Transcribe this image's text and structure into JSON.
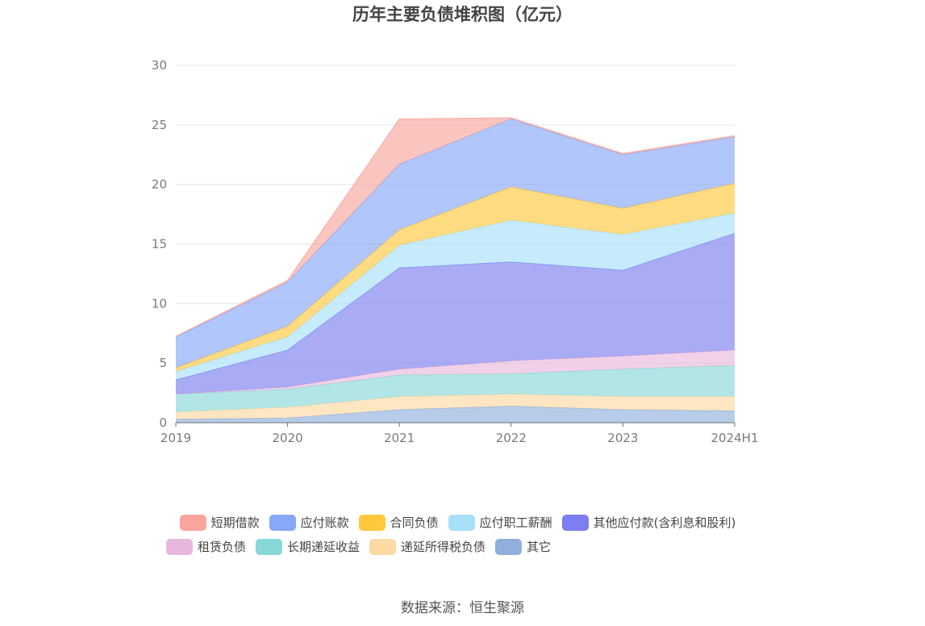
{
  "chart_data": {
    "type": "area",
    "stacked": true,
    "title": "历年主要负债堆积图（亿元）",
    "categories": [
      "2019",
      "2020",
      "2021",
      "2022",
      "2023",
      "2024H1"
    ],
    "ylim": [
      0,
      30
    ],
    "yticks": [
      0,
      5,
      10,
      15,
      20,
      25,
      30
    ],
    "grid": true,
    "legend_position": "bottom",
    "series": [
      {
        "name": "其它",
        "color": "#8fb0dc",
        "values": [
          0.3,
          0.4,
          1.1,
          1.4,
          1.1,
          1.0
        ]
      },
      {
        "name": "递延所得税负债",
        "color": "#fdd9a3",
        "values": [
          0.6,
          0.9,
          1.1,
          1.0,
          1.1,
          1.2
        ]
      },
      {
        "name": "长期递延收益",
        "color": "#88d8d8",
        "values": [
          1.5,
          1.5,
          1.8,
          1.7,
          2.3,
          2.6
        ]
      },
      {
        "name": "租赁负债",
        "color": "#e8b8dc",
        "values": [
          0.0,
          0.2,
          0.5,
          1.1,
          1.1,
          1.3
        ]
      },
      {
        "name": "其他应付款(含利息和股利)",
        "color": "#7b7ff0",
        "values": [
          1.2,
          3.1,
          8.5,
          8.3,
          7.2,
          9.8
        ]
      },
      {
        "name": "应付职工薪酬",
        "color": "#a8e0fa",
        "values": [
          0.7,
          1.1,
          1.9,
          3.5,
          3.0,
          1.7
        ]
      },
      {
        "name": "合同负债",
        "color": "#ffc83d",
        "values": [
          0.3,
          0.9,
          1.3,
          2.8,
          2.2,
          2.5
        ]
      },
      {
        "name": "应付账款",
        "color": "#87a7f8",
        "values": [
          2.6,
          3.7,
          5.5,
          5.7,
          4.5,
          3.9
        ]
      },
      {
        "name": "短期借款",
        "color": "#f8a59d",
        "values": [
          0.05,
          0.15,
          3.8,
          0.1,
          0.1,
          0.1
        ]
      }
    ],
    "legend_order": [
      "短期借款",
      "应付账款",
      "合同负债",
      "应付职工薪酬",
      "其他应付款(含利息和股利)",
      "租赁负债",
      "长期递延收益",
      "递延所得税负债",
      "其它"
    ]
  },
  "source": "数据来源：恒生聚源"
}
